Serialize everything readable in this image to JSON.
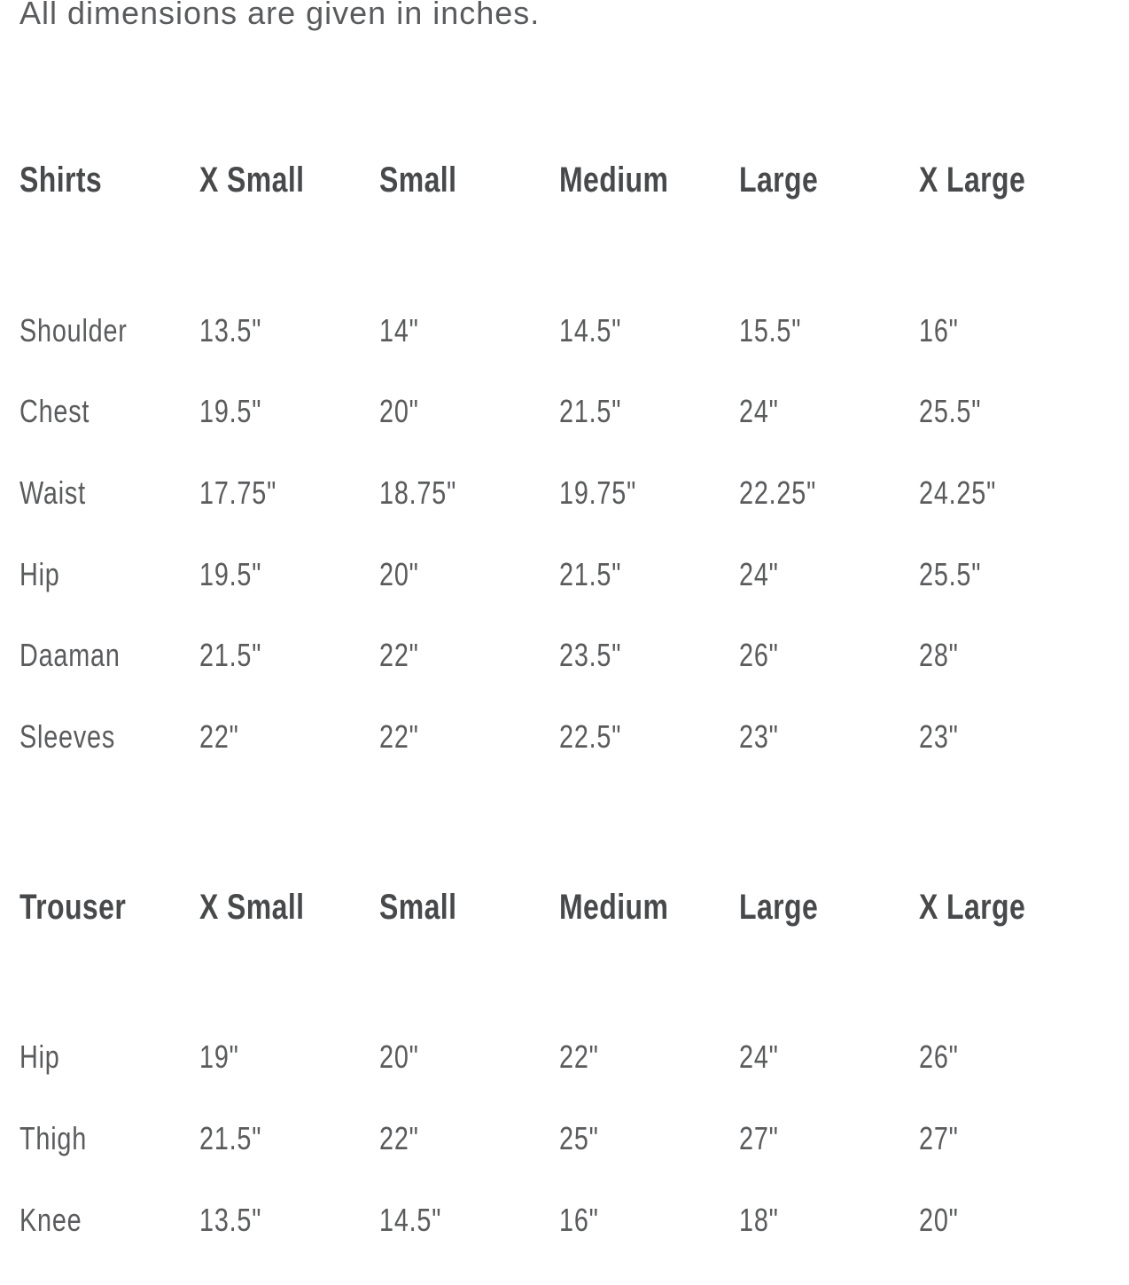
{
  "intro": {
    "note": "All dimensions are given in inches."
  },
  "colors": {
    "background": "#ffffff",
    "heading_text": "#48494b",
    "body_text": "#5a5b5d"
  },
  "tables": [
    {
      "title": "Shirts",
      "columns": [
        "X Small",
        "Small",
        "Medium",
        "Large",
        "X Large"
      ],
      "rows": [
        {
          "label": "Shoulder",
          "values": [
            "13.5\"",
            "14\"",
            "14.5\"",
            "15.5\"",
            "16\""
          ]
        },
        {
          "label": "Chest",
          "values": [
            "19.5\"",
            "20\"",
            "21.5\"",
            "24\"",
            "25.5\""
          ]
        },
        {
          "label": "Waist",
          "values": [
            "17.75\"",
            "18.75\"",
            "19.75\"",
            "22.25\"",
            "24.25\""
          ]
        },
        {
          "label": "Hip",
          "values": [
            "19.5\"",
            "20\"",
            "21.5\"",
            "24\"",
            "25.5\""
          ]
        },
        {
          "label": "Daaman",
          "values": [
            "21.5\"",
            "22\"",
            "23.5\"",
            "26\"",
            "28\""
          ]
        },
        {
          "label": "Sleeves",
          "values": [
            "22\"",
            "22\"",
            "22.5\"",
            "23\"",
            "23\""
          ]
        }
      ]
    },
    {
      "title": "Trouser",
      "columns": [
        "X Small",
        "Small",
        "Medium",
        "Large",
        "X Large"
      ],
      "rows": [
        {
          "label": "Hip",
          "values": [
            "19\"",
            "20\"",
            "22\"",
            "24\"",
            "26\""
          ]
        },
        {
          "label": "Thigh",
          "values": [
            "21.5\"",
            "22\"",
            "25\"",
            "27\"",
            "27\""
          ]
        },
        {
          "label": "Knee",
          "values": [
            "13.5\"",
            "14.5\"",
            "16\"",
            "18\"",
            "20\""
          ]
        }
      ]
    }
  ]
}
